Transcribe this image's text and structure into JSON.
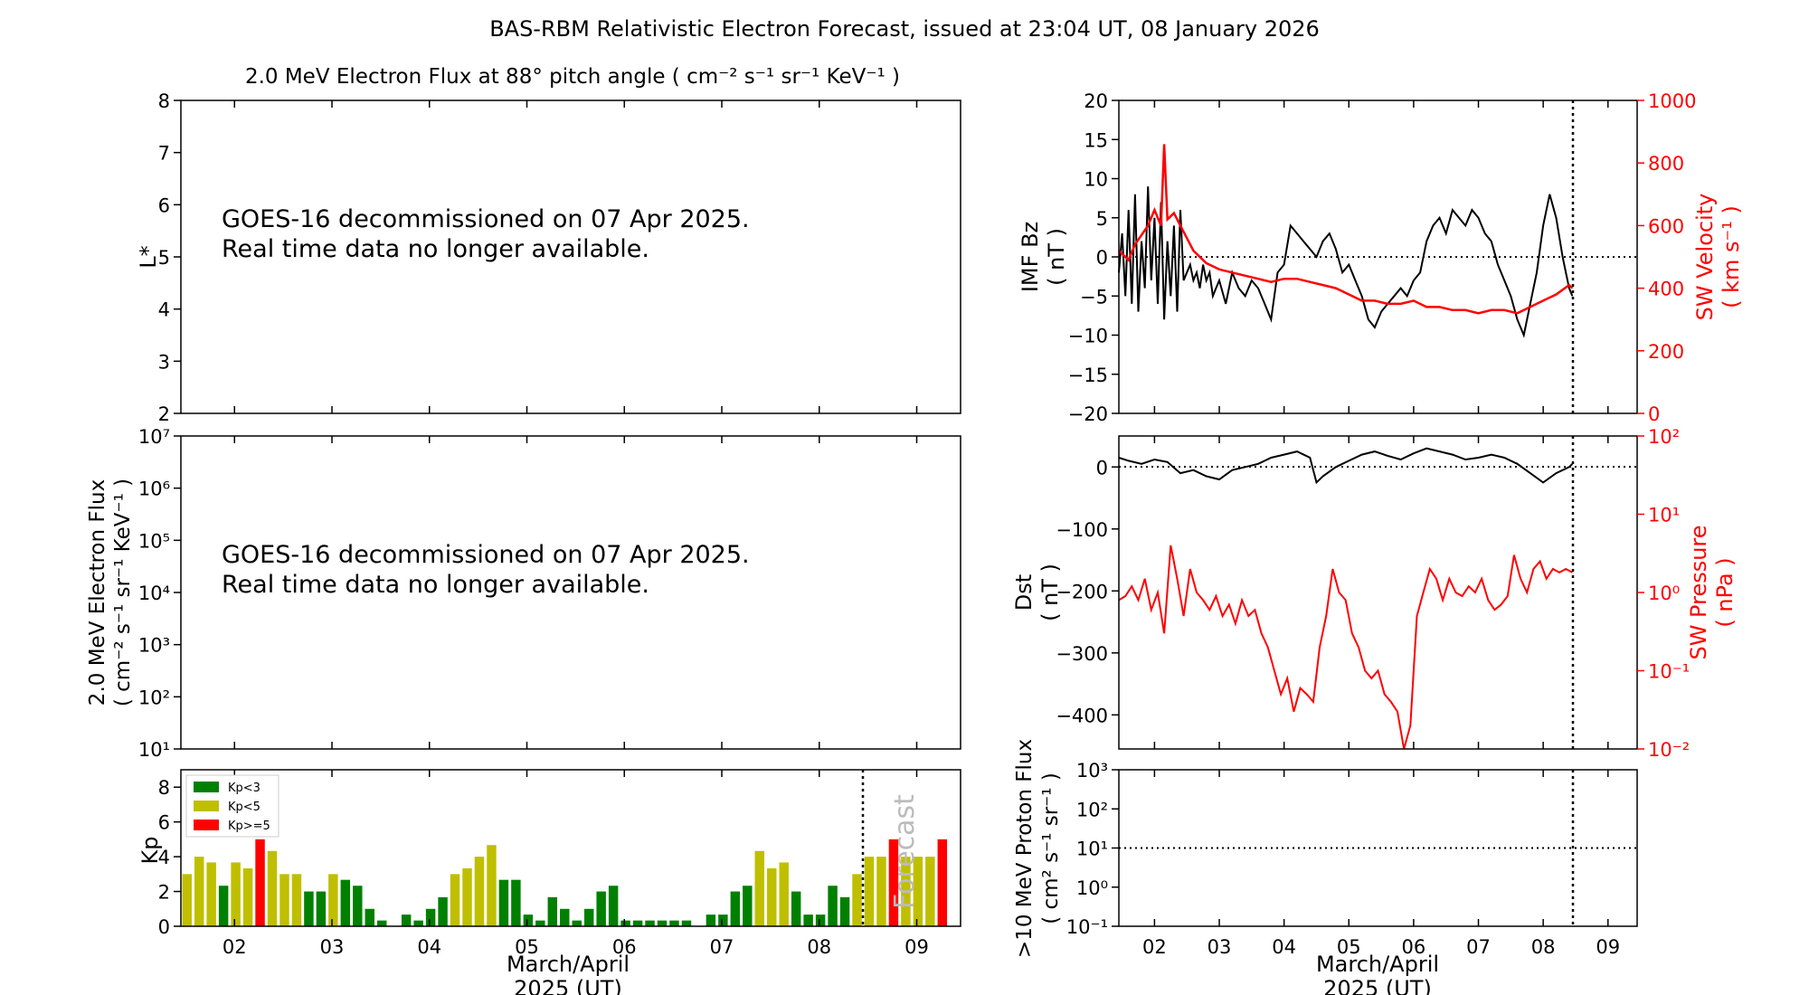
{
  "title": "BAS-RBM Relativistic Electron Forecast, issued at 23:04 UT, 08 January 2026",
  "colors": {
    "red": "#ff0000",
    "kp_low": "#008000",
    "kp_mid": "#bfbf00",
    "kp_high": "#ff0000",
    "black": "#000000"
  },
  "chart_data": [
    {
      "id": "lstar",
      "type": "heatmap",
      "title": "2.0 MeV Electron Flux at 88° pitch angle ( cm⁻² s⁻¹ sr⁻¹ KeV⁻¹ )",
      "ylabel": "L*",
      "ylim": [
        2,
        8
      ],
      "yticks": [
        "2",
        "3",
        "4",
        "5",
        "6",
        "7",
        "8"
      ],
      "message": [
        "GOES-16 decommissioned on 07 Apr 2025.",
        "Real time data no longer available."
      ]
    },
    {
      "id": "eflux",
      "type": "line",
      "yscale": "log",
      "ylabel": [
        "2.0 MeV Electron Flux",
        "( cm⁻² s⁻¹ sr⁻¹ KeV⁻¹ )"
      ],
      "ylim": [
        10,
        10000000
      ],
      "yticks": [
        "10¹",
        "10²",
        "10³",
        "10⁴",
        "10⁵",
        "10⁶",
        "10⁷"
      ],
      "message": [
        "GOES-16 decommissioned on 07 Apr 2025.",
        "Real time data no longer available."
      ]
    },
    {
      "id": "kp",
      "type": "bar",
      "ylabel": "Kp",
      "ylim": [
        0,
        9
      ],
      "yticks": [
        "0",
        "2",
        "4",
        "6",
        "8"
      ],
      "xlim": [
        1.45,
        9.45
      ],
      "xticks": [
        "02",
        "03",
        "04",
        "05",
        "06",
        "07",
        "08",
        "09"
      ],
      "xlabel": [
        "March/April",
        "2025 (UT)"
      ],
      "forecast_start": 8.45,
      "forecast_label": "Forecast",
      "legend": [
        "Kp<3",
        "Kp<5",
        "Kp>=5"
      ],
      "values": [
        3.0,
        4.0,
        3.67,
        2.33,
        3.67,
        3.33,
        5.0,
        4.33,
        3.0,
        3.0,
        2.0,
        2.0,
        3.0,
        2.67,
        2.33,
        1.0,
        0.33,
        0.0,
        0.67,
        0.33,
        1.0,
        1.67,
        3.0,
        3.33,
        4.0,
        4.67,
        2.67,
        2.67,
        0.67,
        0.33,
        1.67,
        1.0,
        0.33,
        1.0,
        2.0,
        2.33,
        0.33,
        0.33,
        0.33,
        0.33,
        0.33,
        0.33,
        0.0,
        0.67,
        0.67,
        2.0,
        2.33,
        4.33,
        3.33,
        3.67,
        2.0,
        0.67,
        0.67,
        2.33,
        1.67,
        3.0,
        4.0,
        4.0,
        5.0,
        4.0,
        4.0,
        4.0,
        5.0
      ]
    },
    {
      "id": "bz",
      "type": "line",
      "ylabel": [
        "IMF Bz",
        "( nT )"
      ],
      "ylim": [
        -20,
        20
      ],
      "yticks": [
        "−20",
        "−15",
        "−10",
        "−5",
        "0",
        "5",
        "10",
        "15",
        "20"
      ],
      "y2label": [
        "SW Velocity",
        "( km s⁻¹ )"
      ],
      "y2lim": [
        0,
        1000
      ],
      "y2ticks": [
        "0",
        "200",
        "400",
        "600",
        "800",
        "1000"
      ],
      "xlim": [
        1.45,
        9.45
      ],
      "now": 8.45,
      "series": [
        {
          "name": "IMF Bz",
          "color": "#000000",
          "x": [
            1.45,
            1.5,
            1.55,
            1.6,
            1.65,
            1.7,
            1.75,
            1.8,
            1.85,
            1.9,
            1.95,
            2.0,
            2.05,
            2.1,
            2.15,
            2.2,
            2.25,
            2.3,
            2.35,
            2.4,
            2.45,
            2.5,
            2.55,
            2.6,
            2.65,
            2.7,
            2.75,
            2.8,
            2.85,
            2.9,
            2.95,
            3.0,
            3.1,
            3.2,
            3.3,
            3.4,
            3.5,
            3.6,
            3.7,
            3.8,
            3.9,
            4.0,
            4.1,
            4.2,
            4.3,
            4.4,
            4.5,
            4.6,
            4.7,
            4.8,
            4.9,
            5.0,
            5.1,
            5.2,
            5.3,
            5.4,
            5.5,
            5.6,
            5.7,
            5.8,
            5.9,
            6.0,
            6.1,
            6.2,
            6.3,
            6.4,
            6.5,
            6.6,
            6.7,
            6.8,
            6.9,
            7.0,
            7.1,
            7.2,
            7.3,
            7.4,
            7.5,
            7.6,
            7.7,
            7.8,
            7.9,
            8.0,
            8.1,
            8.2,
            8.3,
            8.4,
            8.45
          ],
          "values": [
            -2,
            3,
            -5,
            6,
            -6,
            8,
            -7,
            2,
            -4,
            9,
            -3,
            5,
            -6,
            7,
            -8,
            2,
            -5,
            4,
            -7,
            6,
            -3,
            -2,
            -1,
            -3,
            -2,
            -4,
            -1,
            -3,
            -2,
            -5,
            -4,
            -3,
            -6,
            -2,
            -4,
            -5,
            -3,
            -4,
            -6,
            -8,
            -2,
            -1,
            4,
            3,
            2,
            1,
            0,
            2,
            3,
            1,
            -2,
            -1,
            -3,
            -5,
            -8,
            -9,
            -7,
            -6,
            -5,
            -4,
            -5,
            -3,
            -2,
            2,
            4,
            5,
            3,
            6,
            5,
            4,
            6,
            5,
            3,
            2,
            -1,
            -3,
            -5,
            -8,
            -10,
            -6,
            -2,
            4,
            8,
            5,
            0,
            -4,
            -5
          ]
        },
        {
          "name": "SW Velocity",
          "color": "#ff0000",
          "axis": "right",
          "x": [
            1.45,
            1.5,
            1.6,
            1.7,
            1.8,
            1.9,
            2.0,
            2.1,
            2.15,
            2.2,
            2.3,
            2.4,
            2.5,
            2.6,
            2.7,
            2.8,
            2.9,
            3.0,
            3.2,
            3.4,
            3.6,
            3.8,
            4.0,
            4.2,
            4.4,
            4.6,
            4.8,
            5.0,
            5.2,
            5.4,
            5.6,
            5.8,
            6.0,
            6.2,
            6.4,
            6.6,
            6.8,
            7.0,
            7.2,
            7.4,
            7.6,
            7.8,
            8.0,
            8.2,
            8.4,
            8.45
          ],
          "values": [
            520,
            510,
            490,
            540,
            570,
            600,
            650,
            600,
            860,
            620,
            640,
            600,
            560,
            520,
            500,
            480,
            470,
            460,
            450,
            440,
            430,
            420,
            430,
            430,
            420,
            410,
            400,
            380,
            360,
            360,
            350,
            350,
            360,
            340,
            340,
            330,
            330,
            320,
            330,
            330,
            320,
            340,
            360,
            380,
            410,
            400
          ]
        }
      ]
    },
    {
      "id": "dst",
      "type": "line",
      "ylabel": [
        "Dst",
        "( nT )"
      ],
      "ylim": [
        -455,
        50
      ],
      "yticks": [
        "−400",
        "−300",
        "−200",
        "−100",
        "0"
      ],
      "y2label": [
        "SW Pressure",
        "( nPa )"
      ],
      "y2lim": [
        0.01,
        100
      ],
      "y2ticks": [
        "10⁻²",
        "10⁻¹",
        "10⁰",
        "10¹",
        "10²"
      ],
      "xlim": [
        1.45,
        9.45
      ],
      "now": 8.45,
      "series": [
        {
          "name": "Dst",
          "color": "#000000",
          "x": [
            1.45,
            1.6,
            1.8,
            2.0,
            2.2,
            2.4,
            2.6,
            2.8,
            3.0,
            3.2,
            3.4,
            3.6,
            3.8,
            4.0,
            4.2,
            4.4,
            4.5,
            4.6,
            4.8,
            5.0,
            5.2,
            5.4,
            5.6,
            5.8,
            6.0,
            6.2,
            6.4,
            6.6,
            6.8,
            7.0,
            7.2,
            7.4,
            7.6,
            7.8,
            8.0,
            8.2,
            8.4,
            8.45
          ],
          "values": [
            15,
            10,
            5,
            12,
            8,
            -10,
            -5,
            -15,
            -20,
            -5,
            0,
            5,
            15,
            20,
            25,
            15,
            -25,
            -15,
            0,
            10,
            20,
            25,
            18,
            12,
            22,
            30,
            25,
            20,
            12,
            15,
            20,
            15,
            5,
            -10,
            -25,
            -10,
            0,
            5
          ]
        },
        {
          "name": "SW Pressure",
          "color": "#ff0000",
          "axis": "right",
          "x": [
            1.45,
            1.55,
            1.65,
            1.75,
            1.85,
            1.95,
            2.05,
            2.15,
            2.25,
            2.35,
            2.45,
            2.55,
            2.65,
            2.75,
            2.85,
            2.95,
            3.05,
            3.15,
            3.25,
            3.35,
            3.45,
            3.55,
            3.65,
            3.75,
            3.85,
            3.95,
            4.05,
            4.15,
            4.25,
            4.35,
            4.45,
            4.55,
            4.65,
            4.75,
            4.85,
            4.95,
            5.05,
            5.15,
            5.25,
            5.35,
            5.45,
            5.55,
            5.65,
            5.75,
            5.85,
            5.95,
            6.05,
            6.15,
            6.25,
            6.35,
            6.45,
            6.55,
            6.65,
            6.75,
            6.85,
            6.95,
            7.05,
            7.15,
            7.25,
            7.35,
            7.45,
            7.55,
            7.65,
            7.75,
            7.85,
            7.95,
            8.05,
            8.15,
            8.25,
            8.35,
            8.45
          ],
          "values": [
            0.8,
            0.9,
            1.2,
            0.8,
            1.5,
            0.6,
            1.0,
            0.3,
            4.0,
            1.5,
            0.5,
            2.0,
            1.0,
            0.8,
            0.6,
            0.9,
            0.5,
            0.7,
            0.4,
            0.8,
            0.5,
            0.6,
            0.3,
            0.2,
            0.1,
            0.05,
            0.08,
            0.03,
            0.06,
            0.05,
            0.04,
            0.2,
            0.5,
            2.0,
            1.0,
            0.8,
            0.3,
            0.2,
            0.1,
            0.08,
            0.1,
            0.05,
            0.04,
            0.03,
            0.01,
            0.02,
            0.5,
            1.0,
            2.0,
            1.5,
            0.8,
            1.5,
            1.0,
            0.9,
            1.2,
            1.0,
            1.5,
            0.8,
            0.6,
            0.7,
            0.9,
            3.0,
            1.5,
            1.0,
            2.0,
            2.5,
            1.5,
            2.0,
            1.8,
            2.0,
            1.8
          ]
        }
      ]
    },
    {
      "id": "proton",
      "type": "line",
      "yscale": "log",
      "ylabel": [
        ">10 MeV Proton Flux",
        "( cm² s⁻¹ sr⁻¹ )"
      ],
      "ylim": [
        0.1,
        1000
      ],
      "yticks": [
        "10⁻¹",
        "10⁰",
        "10¹",
        "10²",
        "10³"
      ],
      "xlim": [
        1.45,
        9.45
      ],
      "xticks": [
        "02",
        "03",
        "04",
        "05",
        "06",
        "07",
        "08",
        "09"
      ],
      "xlabel": [
        "March/April",
        "2025 (UT)"
      ],
      "threshold": 10,
      "now": 8.45
    }
  ]
}
